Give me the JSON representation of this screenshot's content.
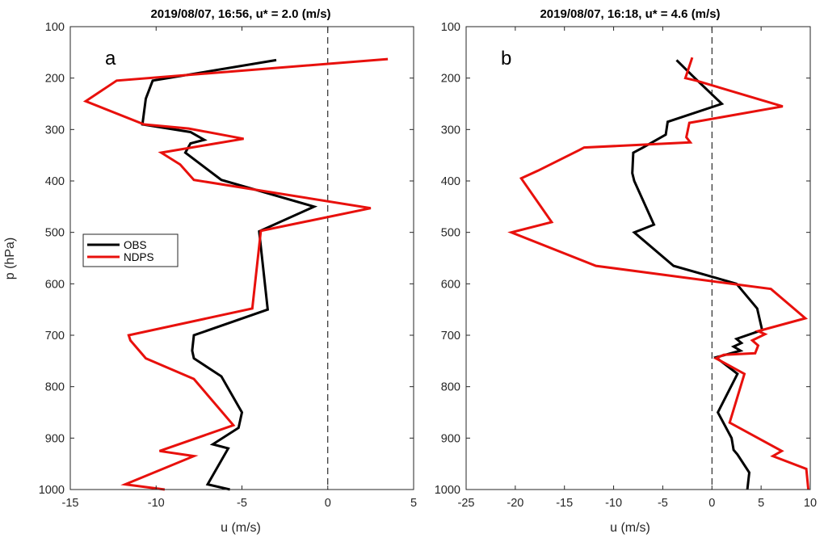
{
  "chart_data": [
    {
      "type": "line",
      "title": "2019/08/07, 16:56, u* =  2.0 (m/s)",
      "panel_label": "a",
      "xlabel": "u (m/s)",
      "ylabel": "p (hPa)",
      "xlim": [
        -15,
        5
      ],
      "ylim": [
        100,
        1000
      ],
      "y_reversed": true,
      "xticks": [
        -15,
        -10,
        -5,
        0,
        5
      ],
      "yticks": [
        100,
        200,
        300,
        400,
        500,
        600,
        700,
        800,
        900,
        1000
      ],
      "zero_line": "dashed",
      "legend": {
        "placement": "left",
        "entries": [
          "OBS",
          "NDPS"
        ]
      },
      "series": [
        {
          "name": "OBS",
          "color": "#000000",
          "points": [
            [
              -3.0,
              165
            ],
            [
              -10.2,
              205
            ],
            [
              -10.6,
              240
            ],
            [
              -10.8,
              290
            ],
            [
              -8.0,
              305
            ],
            [
              -7.2,
              320
            ],
            [
              -8.0,
              327
            ],
            [
              -8.3,
              345
            ],
            [
              -6.2,
              398
            ],
            [
              -0.8,
              450
            ],
            [
              -4.0,
              498
            ],
            [
              -3.5,
              650
            ],
            [
              -7.8,
              700
            ],
            [
              -7.9,
              730
            ],
            [
              -7.8,
              745
            ],
            [
              -6.2,
              780
            ],
            [
              -5.0,
              850
            ],
            [
              -5.2,
              880
            ],
            [
              -6.7,
              912
            ],
            [
              -5.8,
              920
            ],
            [
              -7.0,
              990
            ],
            [
              -5.7,
              1000
            ]
          ]
        },
        {
          "name": "NDPS",
          "color": "#e8100c",
          "points": [
            [
              3.5,
              163
            ],
            [
              -12.3,
              205
            ],
            [
              -14.1,
              245
            ],
            [
              -10.7,
              290
            ],
            [
              -8.1,
              298
            ],
            [
              -4.9,
              318
            ],
            [
              -9.7,
              345
            ],
            [
              -8.6,
              368
            ],
            [
              -7.8,
              398
            ],
            [
              2.5,
              453
            ],
            [
              -3.9,
              497
            ],
            [
              -4.4,
              648
            ],
            [
              -11.6,
              700
            ],
            [
              -11.5,
              710
            ],
            [
              -10.6,
              745
            ],
            [
              -7.8,
              785
            ],
            [
              -5.5,
              875
            ],
            [
              -9.8,
              925
            ],
            [
              -7.8,
              935
            ],
            [
              -11.8,
              990
            ],
            [
              -9.5,
              1000
            ]
          ]
        }
      ]
    },
    {
      "type": "line",
      "title": "2019/08/07, 16:18, u* =  4.6 (m/s)",
      "panel_label": "b",
      "xlabel": "u (m/s)",
      "xlim": [
        -25,
        10
      ],
      "ylim": [
        100,
        1000
      ],
      "y_reversed": true,
      "xticks": [
        -25,
        -20,
        -15,
        -10,
        -5,
        0,
        5,
        10
      ],
      "yticks": [
        100,
        200,
        300,
        400,
        500,
        600,
        700,
        800,
        900,
        1000
      ],
      "zero_line": "dashed",
      "series": [
        {
          "name": "OBS",
          "color": "#000000",
          "points": [
            [
              -3.6,
              165
            ],
            [
              -1.9,
              197
            ],
            [
              1.0,
              250
            ],
            [
              -4.5,
              285
            ],
            [
              -4.7,
              310
            ],
            [
              -7.0,
              335
            ],
            [
              -8.0,
              345
            ],
            [
              -8.1,
              385
            ],
            [
              -7.9,
              400
            ],
            [
              -5.9,
              485
            ],
            [
              -7.9,
              500
            ],
            [
              -3.9,
              565
            ],
            [
              2.5,
              600
            ],
            [
              4.6,
              648
            ],
            [
              5.1,
              690
            ],
            [
              2.5,
              707
            ],
            [
              3.0,
              715
            ],
            [
              2.2,
              722
            ],
            [
              2.9,
              730
            ],
            [
              0.4,
              743
            ],
            [
              2.6,
              775
            ],
            [
              0.6,
              850
            ],
            [
              2.0,
              900
            ],
            [
              2.2,
              923
            ],
            [
              2.6,
              932
            ],
            [
              3.8,
              967
            ],
            [
              3.6,
              1000
            ]
          ]
        },
        {
          "name": "NDPS",
          "color": "#e8100c",
          "points": [
            [
              -2.0,
              160
            ],
            [
              -2.7,
              200
            ],
            [
              -1.6,
              205
            ],
            [
              7.2,
              255
            ],
            [
              -2.3,
              287
            ],
            [
              -2.6,
              315
            ],
            [
              -2.2,
              325
            ],
            [
              -13.0,
              335
            ],
            [
              -13.5,
              340
            ],
            [
              -17.7,
              380
            ],
            [
              -19.4,
              395
            ],
            [
              -16.3,
              480
            ],
            [
              -20.4,
              500
            ],
            [
              -11.8,
              565
            ],
            [
              6.0,
              610
            ],
            [
              9.5,
              667
            ],
            [
              4.7,
              692
            ],
            [
              5.4,
              698
            ],
            [
              4.1,
              710
            ],
            [
              4.7,
              720
            ],
            [
              4.4,
              735
            ],
            [
              1.2,
              738
            ],
            [
              0.4,
              745
            ],
            [
              3.3,
              775
            ],
            [
              1.8,
              870
            ],
            [
              7.1,
              925
            ],
            [
              6.2,
              935
            ],
            [
              9.6,
              960
            ],
            [
              9.8,
              1000
            ]
          ]
        }
      ]
    }
  ]
}
